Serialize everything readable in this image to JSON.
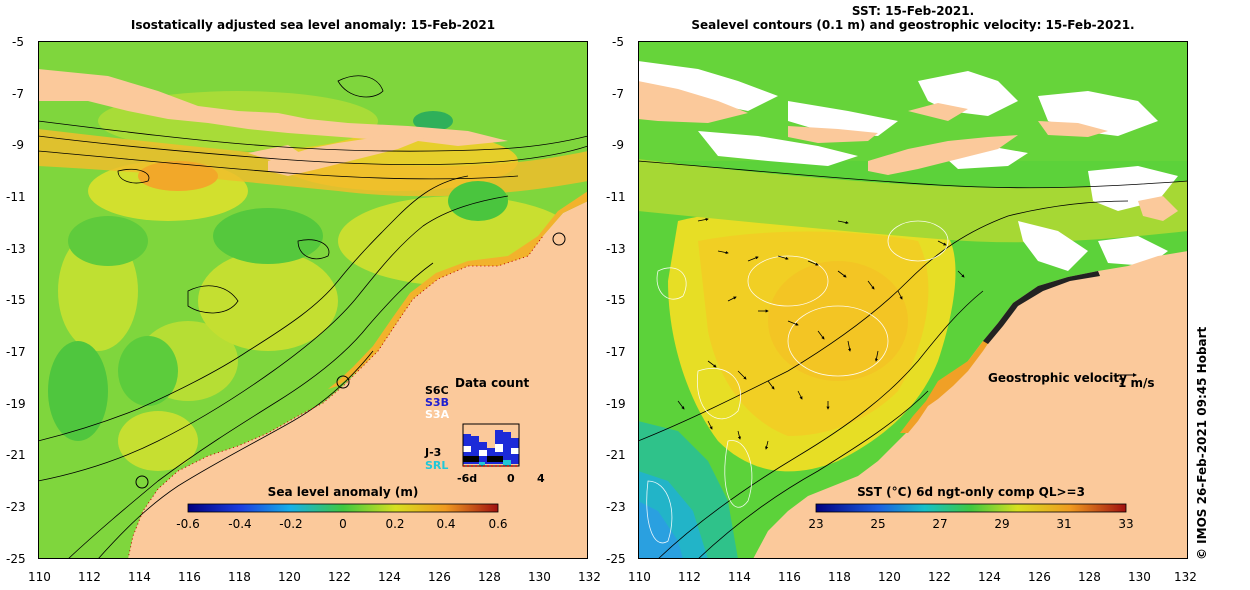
{
  "left_panel": {
    "title": "Isostatically adjusted sea level anomaly: 15-Feb-2021",
    "colorbar": {
      "label": "Sea level anomaly (m)",
      "ticks": [
        "-0.6",
        "-0.4",
        "-0.2",
        "0",
        "0.2",
        "0.4",
        "0.6"
      ]
    },
    "data_count": {
      "title": "Data count",
      "satellites": [
        "S6C",
        "S3B",
        "S3A",
        "J-3",
        "SRL"
      ],
      "x_ticks": [
        "-6d",
        "0",
        "4"
      ]
    }
  },
  "right_panel": {
    "title_line1": "SST: 15-Feb-2021.",
    "title_line2": "Sealevel contours (0.1 m) and geostrophic velocity: 15-Feb-2021.",
    "colorbar": {
      "label": "SST (°C) 6d ngt-only comp QL>=3",
      "ticks": [
        "23",
        "25",
        "27",
        "29",
        "31",
        "33"
      ]
    },
    "velocity_legend": {
      "label": "Geostrophic velocity",
      "scale": "1 m/s"
    }
  },
  "axes": {
    "x_ticks": [
      "110",
      "112",
      "114",
      "116",
      "118",
      "120",
      "122",
      "124",
      "126",
      "128",
      "130",
      "132"
    ],
    "y_ticks": [
      "-5",
      "-7",
      "-9",
      "-11",
      "-13",
      "-15",
      "-17",
      "-19",
      "-21",
      "-23",
      "-25"
    ]
  },
  "credit": "© IMOS 26-Feb-2021 09:45 Hobart",
  "colors": {
    "land": "#fbc99b",
    "sea_green": "#6cd33a",
    "sea_yellow": "#d8e32a",
    "sea_orange": "#f0b52a",
    "cloud": "#ffffff"
  }
}
